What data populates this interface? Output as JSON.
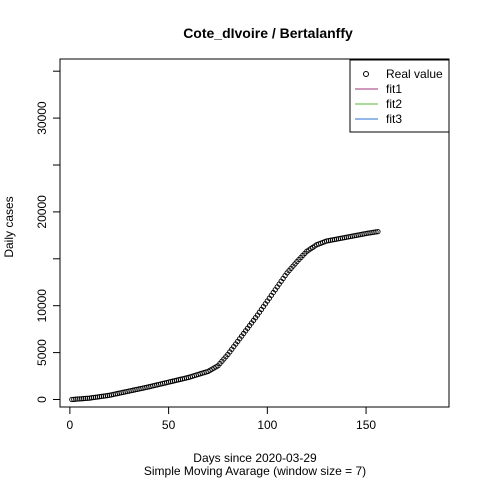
{
  "chart_data": {
    "type": "scatter",
    "title": "Cote_dIvoire / Bertalanffy",
    "xlabel": "Days since 2020-03-29",
    "subtitle": "Simple Moving Avarage (window size = 7)",
    "ylabel": "Daily cases",
    "xlim": [
      -5,
      192
    ],
    "ylim": [
      -800,
      36300
    ],
    "x_ticks": [
      0,
      50,
      100,
      150
    ],
    "y_ticks": [
      0,
      5000,
      10000,
      15000,
      20000,
      25000,
      30000,
      35000
    ],
    "y_tick_labels": [
      "0",
      "5000",
      "10000",
      "",
      "20000",
      "",
      "30000",
      ""
    ],
    "legend": {
      "position": "top-right",
      "entries": [
        {
          "label": "Real value",
          "kind": "point",
          "color": "#000000"
        },
        {
          "label": "fit1",
          "kind": "line",
          "color": "#a0307a"
        },
        {
          "label": "fit2",
          "kind": "line",
          "color": "#52b830"
        },
        {
          "label": "fit3",
          "kind": "line",
          "color": "#2a6fd6"
        }
      ]
    },
    "series": [
      {
        "name": "Real value",
        "anchors": [
          [
            1,
            0
          ],
          [
            10,
            150
          ],
          [
            20,
            450
          ],
          [
            30,
            900
          ],
          [
            40,
            1350
          ],
          [
            50,
            1850
          ],
          [
            60,
            2350
          ],
          [
            70,
            3000
          ],
          [
            75,
            3600
          ],
          [
            80,
            4800
          ],
          [
            85,
            6200
          ],
          [
            90,
            7600
          ],
          [
            95,
            9000
          ],
          [
            100,
            10500
          ],
          [
            105,
            12000
          ],
          [
            110,
            13500
          ],
          [
            115,
            14700
          ],
          [
            120,
            15800
          ],
          [
            125,
            16500
          ],
          [
            130,
            16900
          ],
          [
            140,
            17300
          ],
          [
            150,
            17700
          ],
          [
            156,
            17900
          ]
        ]
      }
    ]
  }
}
